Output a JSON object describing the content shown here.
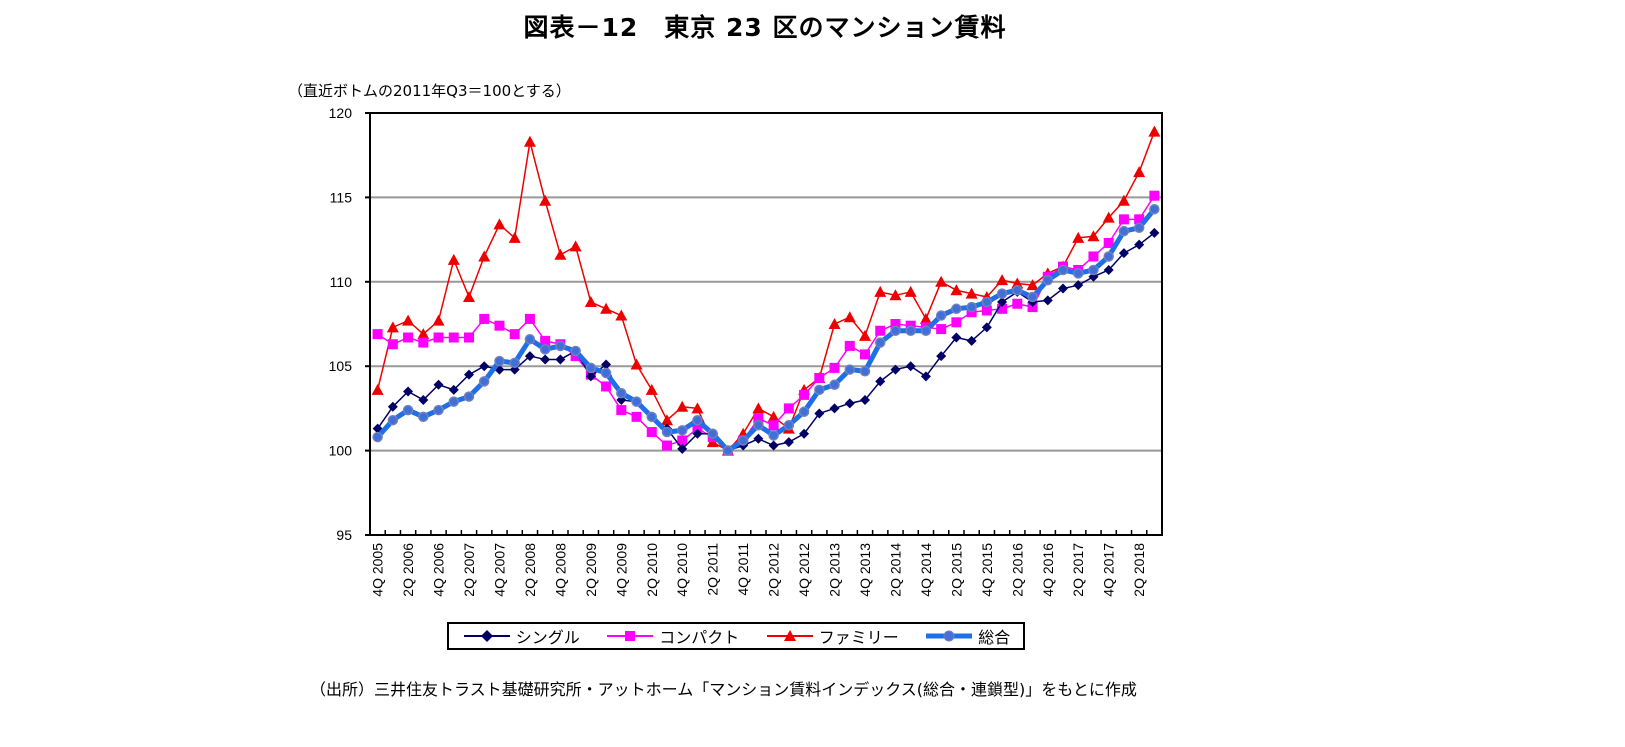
{
  "title": "図表－12　東京 23 区のマンション賃料",
  "note": "（直近ボトムの2011年Q3＝100とする）",
  "source": "（出所）三井住友トラスト基礎研究所・アットホーム「マンション賃料インデックス(総合・連鎖型)」をもとに作成",
  "chart_data": {
    "type": "line",
    "title": "図表－12　東京 23 区のマンション賃料",
    "ylabel": "",
    "xlabel": "",
    "ylim": [
      95,
      120
    ],
    "yticks": [
      "95",
      "100",
      "105",
      "110",
      "115",
      "120"
    ],
    "grid": true,
    "legend_position": "bottom",
    "x_range": [
      "4Q 2005",
      "3Q 2018"
    ],
    "x_tick_labels": [
      "4Q 2005",
      "2Q 2006",
      "4Q 2006",
      "2Q 2007",
      "4Q 2007",
      "2Q 2008",
      "4Q 2008",
      "2Q 2009",
      "4Q 2009",
      "2Q 2010",
      "4Q 2010",
      "2Q 2011",
      "4Q 2011",
      "2Q 2012",
      "4Q 2012",
      "2Q 2013",
      "4Q 2013",
      "2Q 2014",
      "4Q 2014",
      "2Q 2015",
      "4Q 2015",
      "2Q 2016",
      "4Q 2016",
      "2Q 2017",
      "4Q 2017",
      "2Q 2018"
    ],
    "series": [
      {
        "name": "シングル",
        "color": "#000066",
        "marker": "diamond",
        "values": [
          101.3,
          102.6,
          103.5,
          103.0,
          103.9,
          103.6,
          104.5,
          105.0,
          104.8,
          104.8,
          105.6,
          105.4,
          105.4,
          105.9,
          104.4,
          105.1,
          103.0,
          102.9,
          102.0,
          101.3,
          100.1,
          101.0,
          101.0,
          100.0,
          100.3,
          100.7,
          100.3,
          100.5,
          101.0,
          102.2,
          102.5,
          102.8,
          103.0,
          104.1,
          104.8,
          105.0,
          104.4,
          105.6,
          106.7,
          106.5,
          107.3,
          108.8,
          109.4,
          108.8,
          108.9,
          109.6,
          109.8,
          110.3,
          110.7,
          111.7,
          112.2,
          112.9
        ]
      },
      {
        "name": "コンパクト",
        "color": "#FF00FF",
        "marker": "square",
        "values": [
          106.9,
          106.3,
          106.7,
          106.4,
          106.7,
          106.7,
          106.7,
          107.8,
          107.4,
          106.9,
          107.8,
          106.5,
          106.3,
          105.6,
          104.5,
          103.8,
          102.4,
          102.0,
          101.1,
          100.3,
          100.6,
          101.3,
          100.8,
          100.0,
          100.6,
          101.9,
          101.5,
          102.5,
          103.3,
          104.3,
          104.9,
          106.2,
          105.7,
          107.1,
          107.5,
          107.4,
          107.3,
          107.2,
          107.6,
          108.2,
          108.3,
          108.4,
          108.7,
          108.5,
          110.3,
          110.9,
          110.7,
          111.5,
          112.3,
          113.7,
          113.7,
          115.1
        ]
      },
      {
        "name": "ファミリー",
        "color": "#EE0000",
        "marker": "triangle",
        "values": [
          103.6,
          107.3,
          107.7,
          106.9,
          107.7,
          111.3,
          109.1,
          111.5,
          113.4,
          112.6,
          118.3,
          114.8,
          111.6,
          112.1,
          108.8,
          108.4,
          108.0,
          105.1,
          103.6,
          101.8,
          102.6,
          102.5,
          100.5,
          100.0,
          101.0,
          102.5,
          102.0,
          101.3,
          103.6,
          104.3,
          107.5,
          107.9,
          106.8,
          109.4,
          109.2,
          109.4,
          107.8,
          110.0,
          109.5,
          109.3,
          109.1,
          110.1,
          109.9,
          109.8,
          110.5,
          110.9,
          112.6,
          112.7,
          113.8,
          114.8,
          116.5,
          118.9
        ]
      },
      {
        "name": "総合",
        "color": "#1E6FE8",
        "marker": "circle",
        "values": [
          100.8,
          101.8,
          102.4,
          102.0,
          102.4,
          102.9,
          103.2,
          104.1,
          105.3,
          105.2,
          106.6,
          106.0,
          106.2,
          105.9,
          104.9,
          104.6,
          103.4,
          102.9,
          102.0,
          101.1,
          101.2,
          101.8,
          101.0,
          100.0,
          100.6,
          101.5,
          100.9,
          101.5,
          102.3,
          103.6,
          103.9,
          104.8,
          104.7,
          106.4,
          107.1,
          107.1,
          107.1,
          108.0,
          108.4,
          108.5,
          108.8,
          109.3,
          109.5,
          109.1,
          110.1,
          110.7,
          110.5,
          110.7,
          111.5,
          113.0,
          113.2,
          114.3
        ]
      }
    ]
  }
}
